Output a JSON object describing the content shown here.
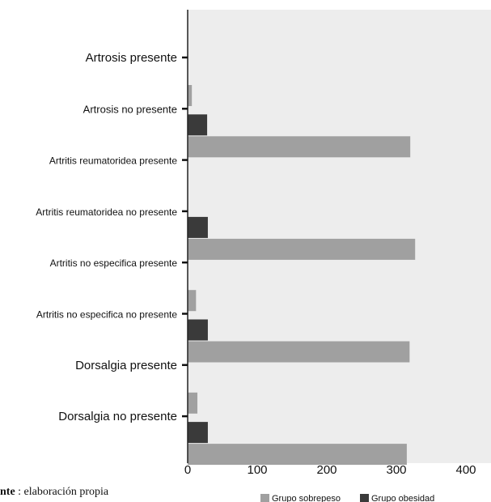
{
  "chart_data": {
    "type": "bar",
    "orientation": "horizontal",
    "categories": [
      "Artrosis presente",
      "Artrosis no presente",
      "Artritis reumatoridea presente",
      "Artritis reumatoridea no presente",
      "Artritis no especifica presente",
      "Artritis no especifica no presente",
      "Dorsalgia presente",
      "Dorsalgia no presente"
    ],
    "series": [
      {
        "name": "Grupo obesidad",
        "color": "#3a3a3a",
        "values": [
          0,
          28,
          0,
          29,
          0,
          29,
          0,
          29
        ]
      },
      {
        "name": "Grupo sobrepeso",
        "color": "#a0a0a0",
        "values": [
          6,
          320,
          0,
          327,
          12,
          319,
          14,
          315
        ]
      }
    ],
    "xlim": [
      0,
      440
    ],
    "xticks": [
      "0",
      "100",
      "200",
      "300",
      "400"
    ],
    "xtick_values": [
      0,
      100,
      200,
      300,
      400
    ],
    "legend_position": "bottom",
    "plot_background": "#ededed",
    "grid": false
  },
  "footnote": {
    "bold": "nte",
    "text": " : elaboración propia"
  }
}
